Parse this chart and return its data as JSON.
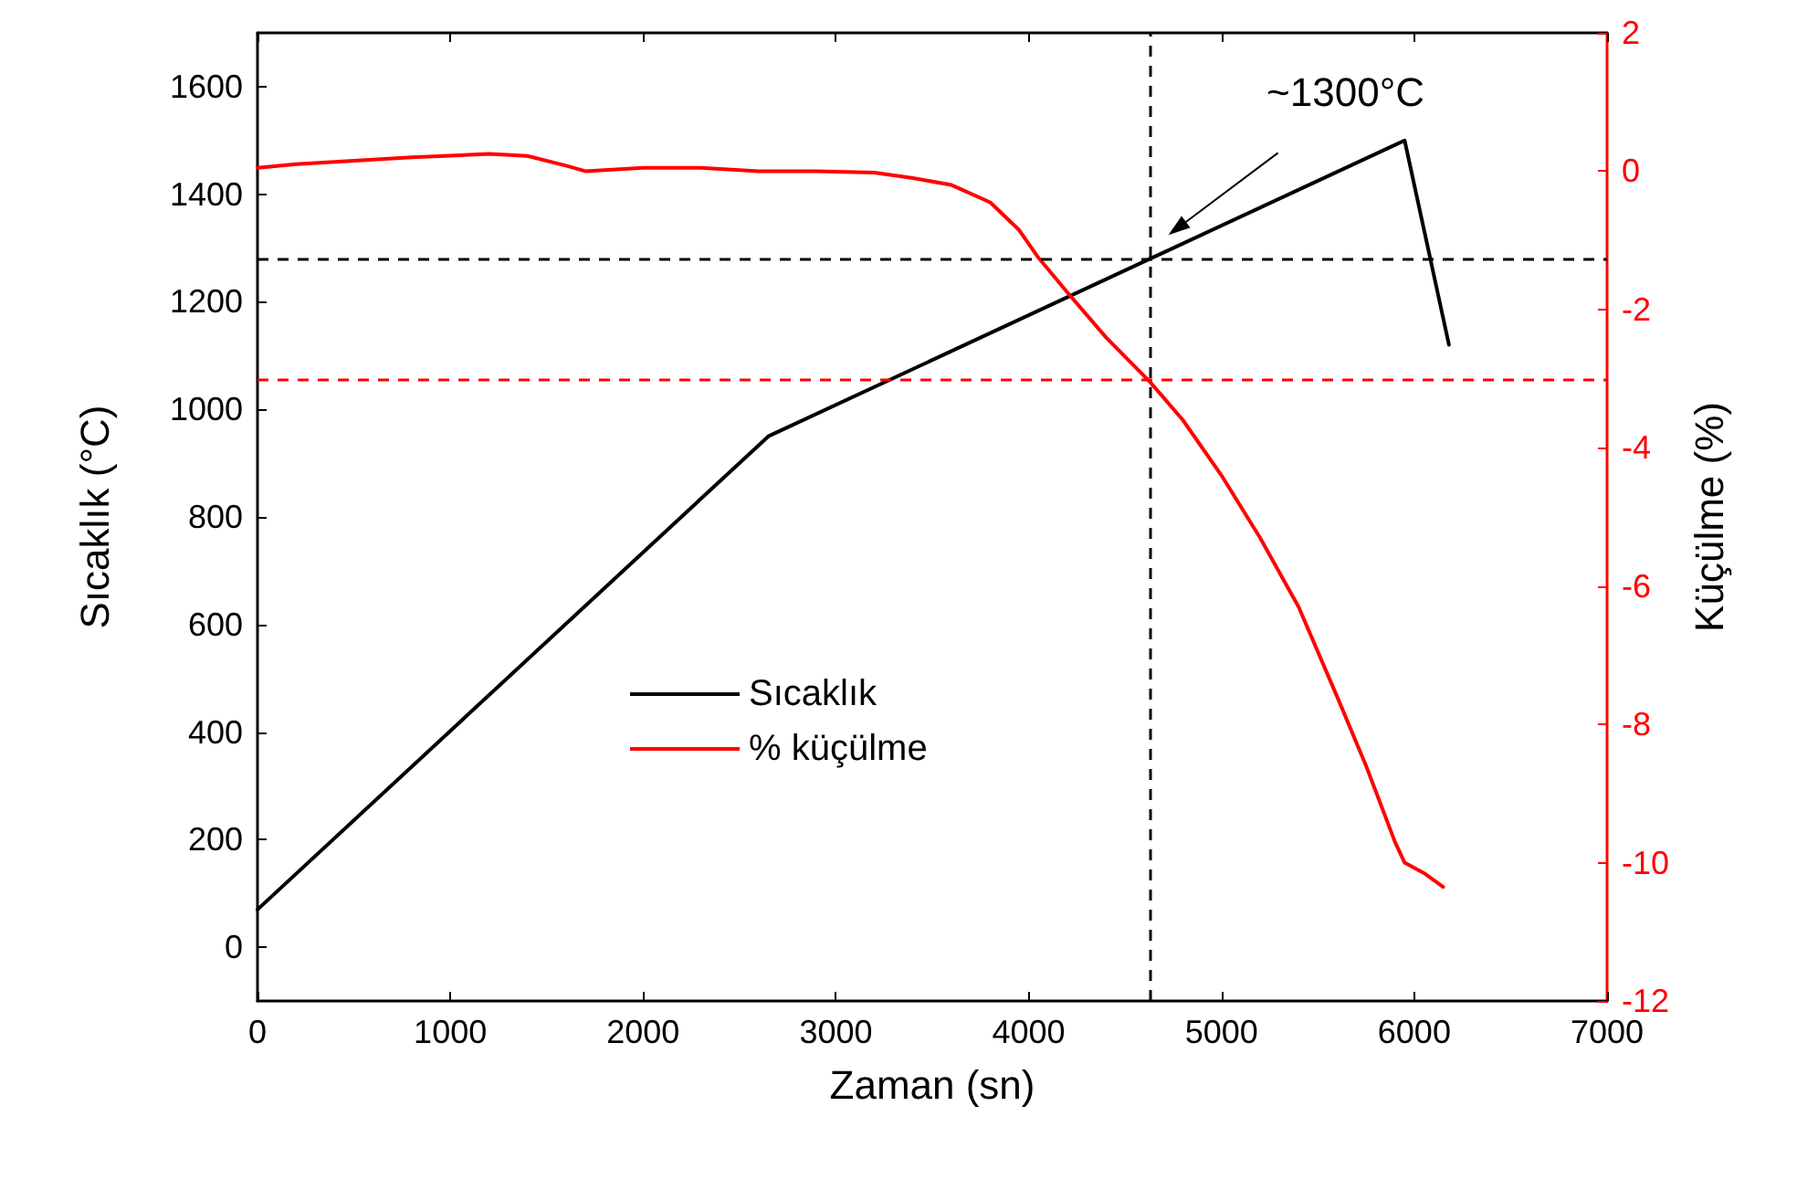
{
  "chart_data": {
    "type": "line",
    "xlabel": "Zaman (sn)",
    "ylabel": "Sıcaklık (°C)",
    "y2label": "Küçülme (%)",
    "xlim": [
      0,
      7000
    ],
    "xticks": [
      0,
      1000,
      2000,
      3000,
      4000,
      5000,
      6000,
      7000
    ],
    "ylim": [
      -100,
      1700
    ],
    "yticks": [
      0,
      200,
      400,
      600,
      800,
      1000,
      1200,
      1400,
      1600
    ],
    "y2lim": [
      -12,
      2
    ],
    "y2ticks": [
      -12,
      -10,
      -8,
      -6,
      -4,
      -2,
      0,
      2
    ],
    "series": [
      {
        "name": "Sıcaklık",
        "color": "#000000",
        "x": [
          0,
          2650,
          5950,
          6180
        ],
        "values": [
          70,
          950,
          1500,
          1120
        ]
      },
      {
        "name": "% küçülme",
        "color": "#ff0000",
        "axis": "y2",
        "x": [
          0,
          200,
          500,
          800,
          1200,
          1400,
          1600,
          1700,
          2000,
          2300,
          2600,
          2900,
          3200,
          3400,
          3600,
          3800,
          3950,
          4050,
          4200,
          4400,
          4630,
          4800,
          5000,
          5200,
          5400,
          5600,
          5750,
          5900,
          5950,
          6050,
          6150
        ],
        "values": [
          0.05,
          0.1,
          0.15,
          0.2,
          0.25,
          0.22,
          0.08,
          0.0,
          0.05,
          0.05,
          0.0,
          0.0,
          -0.02,
          -0.1,
          -0.2,
          -0.45,
          -0.85,
          -1.25,
          -1.75,
          -2.4,
          -3.05,
          -3.6,
          -4.4,
          -5.3,
          -6.3,
          -7.6,
          -8.6,
          -9.7,
          -10.0,
          -10.15,
          -10.35
        ]
      }
    ],
    "ref_lines": [
      {
        "axis": "y",
        "value": 1280,
        "color": "#000000",
        "line_style": "dashed"
      },
      {
        "axis": "x",
        "value": 4630,
        "color": "#000000",
        "line_style": "dashed"
      },
      {
        "axis": "y2",
        "value": -3,
        "color": "#ff0000",
        "line_style": "dashed"
      }
    ],
    "annotations": [
      "~1300°C"
    ],
    "legend": "center",
    "grid": false,
    "marker": "none",
    "line_style": "solid"
  }
}
